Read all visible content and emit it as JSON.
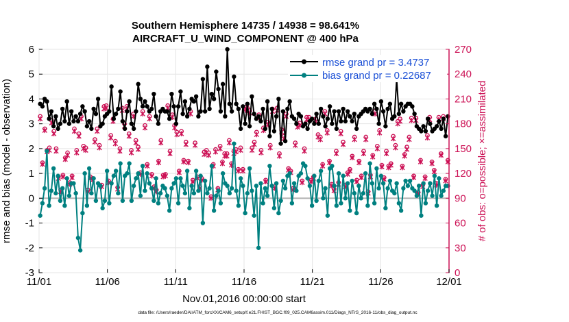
{
  "chart_data": {
    "type": "line",
    "title": "Southern Hemisphere 14735 / 14938 = 98.641%",
    "subtitle": "AIRCRAFT_U_WIND_COMPONENT @ 400 hPa",
    "xlabel": "Nov.01,2016 00:00:00 start",
    "ylabel_left": "rmse and bias (model - observation)",
    "ylabel_right": "# of obs: o=possible; ×=assimilated",
    "x_ticks": [
      "11/01",
      "11/06",
      "11/11",
      "11/16",
      "11/21",
      "11/26",
      "12/01"
    ],
    "x_range_days": [
      0,
      30
    ],
    "ylim_left": [
      -3,
      6
    ],
    "y_ticks_left": [
      "-3",
      "-2",
      "-1",
      "0",
      "1",
      "2",
      "3",
      "4",
      "5",
      "6"
    ],
    "ylim_right": [
      0,
      270
    ],
    "y_ticks_right": [
      "0",
      "30",
      "60",
      "90",
      "120",
      "150",
      "180",
      "210",
      "240",
      "270"
    ],
    "footnote": "data file: /Users/raeder/DAI/ATM_forcXX/CAM6_setup/f.e21.FHIST_BGC.f09_025.CAM6assim.011/Diags_NTrS_2016-11/obs_diag_output.nc",
    "colors": {
      "rmse": "#000000",
      "bias": "#008080",
      "obs": "#cc1155",
      "zero_line": "#b0b0b0",
      "right_axis": "#cc1155"
    },
    "series": [
      {
        "name": "rmse",
        "legend": "rmse grand pr = 3.4737",
        "values": [
          3.8,
          3.7,
          4.0,
          3.9,
          3.2,
          3.5,
          2.9,
          3.3,
          2.8,
          3.0,
          3.6,
          3.1,
          3.9,
          3.0,
          3.5,
          3.1,
          3.3,
          3.1,
          3.4,
          3.7,
          3.5,
          2.9,
          3.1,
          2.8,
          3.6,
          3.4,
          4.0,
          2.9,
          3.0,
          3.3,
          3.4,
          3.5,
          4.5,
          3.2,
          3.4,
          3.6,
          4.3,
          3.1,
          2.8,
          3.5,
          3.9,
          3.0,
          2.8,
          3.5,
          4.6,
          4.0,
          3.7,
          3.9,
          3.7,
          3.5,
          3.6,
          4.2,
          3.3,
          3.0,
          3.5,
          3.6,
          3.5,
          3.5,
          3.2,
          4.2,
          3.7,
          3.0,
          3.7,
          4.3,
          3.4,
          3.9,
          3.3,
          3.6,
          4.0,
          3.9,
          4.1,
          3.3,
          3.5,
          4.8,
          3.5,
          5.3,
          3.6,
          4.2,
          4.0,
          5.1,
          4.4,
          3.5,
          4.6,
          3.3,
          6.0,
          3.8,
          3.5,
          4.9,
          3.8,
          3.6,
          2.8,
          3.7,
          3.0,
          3.8,
          2.9,
          4.1,
          3.4,
          3.2,
          3.3,
          3.1,
          3.6,
          2.8,
          3.9,
          2.5,
          3.6,
          2.7,
          3.3,
          4.0,
          2.2,
          3.5,
          2.3,
          3.6,
          3.9,
          3.3,
          3.2,
          3.0,
          3.4,
          3.3,
          2.9,
          3.0,
          2.8,
          3.1,
          3.2,
          3.0,
          3.4,
          3.0,
          3.6,
          3.3,
          2.9,
          3.2,
          3.7,
          3.0,
          3.5,
          2.8,
          3.5,
          3.1,
          3.6,
          3.1,
          3.5,
          3.3,
          3.1,
          3.4,
          2.8,
          3.3,
          3.4,
          3.5,
          3.6,
          3.5,
          3.6,
          3.4,
          3.8,
          3.6,
          3.0,
          3.9,
          3.5,
          2.9,
          3.6,
          3.8,
          3.2,
          3.3,
          4.8,
          3.4,
          3.8,
          3.5,
          3.7,
          3.8,
          3.8,
          3.7,
          3.4,
          2.9,
          2.8,
          2.7,
          2.9,
          2.7,
          3.2,
          3.0,
          2.7,
          2.8,
          2.9,
          3.1,
          2.8,
          3.2,
          2.5,
          3.3
        ]
      },
      {
        "name": "bias",
        "legend": "bias grand pr = 0.22687",
        "values": [
          -0.7,
          -0.2,
          0.4,
          1.9,
          -0.3,
          0.3,
          1.2,
          0.2,
          0.9,
          -0.1,
          0.4,
          -0.3,
          0.8,
          0.1,
          0.6,
          0.6,
          0.2,
          -1.6,
          -2.1,
          -0.6,
          1.0,
          -0.3,
          1.2,
          0.2,
          0.8,
          -0.1,
          0.6,
          0.5,
          -0.4,
          -0.1,
          1.1,
          -0.2,
          0.6,
          0.9,
          1.1,
          0.2,
          1.4,
          -0.1,
          0.9,
          1.0,
          1.4,
          -0.1,
          0.5,
          0.8,
          1.0,
          0.1,
          1.3,
          0.3,
          1.0,
          0.6,
          0.4,
          -0.1,
          0.8,
          -0.2,
          0.2,
          0.5,
          0.4,
          0.1,
          -0.5,
          0.4,
          0.6,
          0.8,
          -0.2,
          0.8,
          0.5,
          0.2,
          1.1,
          -0.4,
          0.5,
          0.2,
          1.1,
          0.3,
          0.9,
          -1.0,
          0.7,
          0.2,
          0.4,
          1.3,
          -0.5,
          0.1,
          0.3,
          -0.2,
          1.0,
          0.6,
          0.5,
          0.2,
          0.4,
          2.2,
          0.3,
          -0.3,
          0.8,
          0.5,
          -0.6,
          0.2,
          1.2,
          0.3,
          -0.7,
          0.5,
          -2.0,
          0.6,
          -0.2,
          0.4,
          0.1,
          1.3,
          0.5,
          -0.4,
          0.6,
          -0.6,
          -0.1,
          0.7,
          0.4,
          0.9,
          1.0,
          -0.2,
          0.6,
          0.3,
          0.9,
          1.0,
          1.4,
          1.3,
          0.8,
          0.5,
          -0.3,
          0.9,
          -0.1,
          0.7,
          1.1,
          0.0,
          0.4,
          -0.7,
          1.2,
          1.3,
          0.5,
          -0.3,
          1.0,
          -0.2,
          0.9,
          0.0,
          0.6,
          -0.5,
          0.7,
          0.2,
          -0.6,
          0.5,
          0.0,
          0.2,
          1.0,
          -0.3,
          1.4,
          0.6,
          -0.2,
          1.2,
          0.4,
          0.9,
          0.6,
          -0.4,
          0.4,
          0.7,
          0.3,
          0.2,
          0.6,
          -0.2,
          -0.5,
          0.4,
          0.7,
          0.5,
          0.7,
          0.4,
          0.3,
          0.1,
          0.5,
          -0.7,
          0.6,
          -0.2,
          0.3,
          0.6,
          0.1,
          0.9,
          -0.3,
          0.8,
          0.1,
          0.3,
          0.5,
          0.5
        ]
      },
      {
        "name": "obs_possible",
        "marker": "o",
        "values": [
          189,
          133,
          174,
          148,
          151,
          184,
          171,
          150,
          116,
          100,
          118,
          139,
          145,
          109,
          117,
          174,
          148,
          168,
          189,
          153,
          151,
          100,
          116,
          114,
          161,
          174,
          154,
          106,
          201,
          202,
          111,
          166,
          186,
          159,
          103,
          150,
          199,
          180,
          201,
          168,
          148,
          192,
          160,
          152,
          121,
          195,
          178,
          131,
          189,
          119,
          104,
          100,
          135,
          160,
          118,
          119,
          202,
          147,
          191,
          178,
          170,
          123,
          171,
          136,
          158,
          135,
          195,
          112,
          157,
          116,
          104,
          114,
          146,
          148,
          145,
          92,
          131,
          149,
          102,
          153,
          134,
          144,
          144,
          160,
          132,
          147,
          149,
          125,
          151,
          125,
          200,
          199,
          196,
          151,
          158,
          170,
          191,
          148,
          175,
          112,
          182,
          154,
          198,
          104,
          199,
          144,
          173,
          165,
          192,
          126,
          123,
          102,
          157,
          179,
          181,
          111,
          150,
          188,
          188,
          112,
          116,
          186,
          167,
          164,
          131,
          195,
          172,
          135,
          107,
          101,
          147,
          109,
          171,
          158,
          106,
          121,
          125,
          141,
          164,
          112,
          135,
          117,
          147,
          164,
          98,
          118,
          142,
          195,
          153,
          172,
          130,
          115,
          147,
          129,
          132,
          165,
          154,
          183,
          186,
          129,
          143,
          152,
          164,
          187,
          117,
          187,
          97,
          136,
          106,
          116,
          166,
          188,
          134,
          124,
          108,
          188,
          144,
          189,
          113,
          136
        ]
      },
      {
        "name": "obs_assimilated",
        "marker": "x",
        "values": [
          186,
          131,
          172,
          146,
          148,
          181,
          168,
          147,
          114,
          98,
          116,
          137,
          142,
          107,
          115,
          171,
          145,
          165,
          186,
          150,
          148,
          98,
          114,
          112,
          158,
          171,
          151,
          104,
          198,
          199,
          109,
          163,
          183,
          156,
          101,
          147,
          196,
          177,
          198,
          165,
          145,
          189,
          157,
          149,
          119,
          192,
          175,
          129,
          186,
          117,
          102,
          98,
          133,
          157,
          116,
          117,
          199,
          144,
          188,
          175,
          167,
          121,
          168,
          134,
          155,
          133,
          192,
          110,
          154,
          114,
          102,
          112,
          143,
          145,
          142,
          90,
          129,
          146,
          100,
          150,
          132,
          141,
          141,
          157,
          130,
          144,
          146,
          123,
          148,
          123,
          197,
          196,
          193,
          148,
          155,
          167,
          188,
          145,
          172,
          110,
          179,
          151,
          195,
          102,
          196,
          141,
          170,
          162,
          189,
          124,
          121,
          100,
          154,
          176,
          178,
          109,
          147,
          185,
          185,
          110,
          114,
          183,
          164,
          161,
          129,
          192,
          169,
          133,
          105,
          99,
          144,
          107,
          168,
          155,
          104,
          119,
          123,
          139,
          161,
          110,
          133,
          115,
          144,
          161,
          96,
          116,
          140,
          192,
          150,
          169,
          128,
          113,
          144,
          127,
          130,
          162,
          151,
          180,
          183,
          127,
          141,
          149,
          161,
          184,
          115,
          184,
          95,
          134,
          104,
          114,
          163,
          185,
          132,
          122,
          106,
          185,
          142,
          186,
          111,
          134
        ]
      }
    ]
  }
}
